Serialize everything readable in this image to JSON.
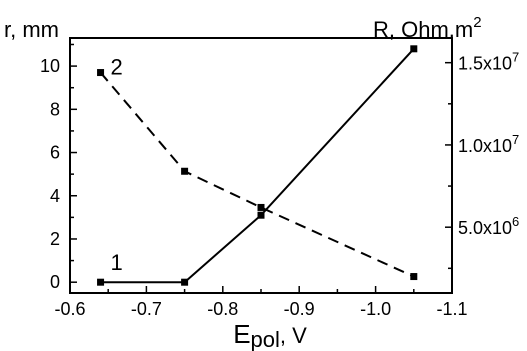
{
  "chart_data": {
    "type": "line",
    "xlabel_main": "E",
    "xlabel_sub": "pol",
    "xlabel_unit": ", V",
    "ylabel_left": "r, mm",
    "ylabel_right_main": "R, Ohm.m",
    "ylabel_right_sup": "2",
    "xlim": [
      -0.6,
      -1.1
    ],
    "ylim_left": [
      -0.5,
      11.3
    ],
    "ylim_right": [
      1000000,
      16500000
    ],
    "x_ticks": [
      -0.6,
      -0.7,
      -0.8,
      -0.9,
      -1.0,
      -1.1
    ],
    "x_tick_labels": [
      "-0.6",
      "-0.7",
      "-0.8",
      "-0.9",
      "-1.0",
      "-1.1"
    ],
    "y_left_ticks": [
      0,
      2,
      4,
      6,
      8,
      10
    ],
    "y_left_tick_labels": [
      "0",
      "2",
      "4",
      "6",
      "8",
      "10"
    ],
    "y_right_ticks": [
      5000000,
      10000000,
      15000000
    ],
    "y_right_tick_labels": [
      {
        "mant": "5.0x10",
        "exp": "6"
      },
      {
        "mant": "1.0x10",
        "exp": "7"
      },
      {
        "mant": "1.5x10",
        "exp": "7"
      }
    ],
    "series": [
      {
        "label": "1",
        "axis": "left",
        "style": "solid",
        "color": "#000000",
        "x": [
          -0.64,
          -0.75,
          -0.85,
          -1.05
        ],
        "y": [
          0,
          0,
          3.1,
          10.8
        ]
      },
      {
        "label": "2",
        "axis": "right",
        "style": "dashed",
        "color": "#000000",
        "x": [
          -0.64,
          -0.75,
          -0.85,
          -1.05
        ],
        "y": [
          14400000,
          8400000,
          6200000,
          2000000
        ]
      }
    ],
    "grid": false
  }
}
